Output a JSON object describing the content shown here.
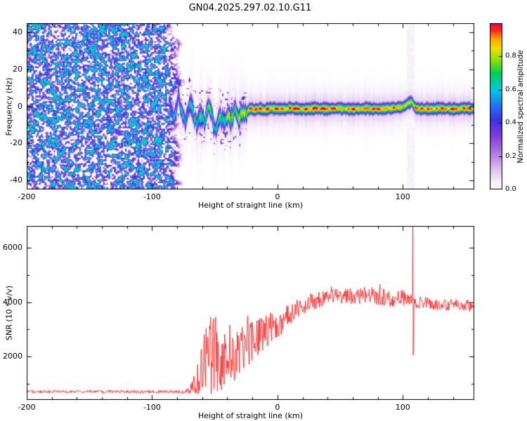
{
  "title": "GN04.2025.297.02.10.G11",
  "chart_data": [
    {
      "type": "heatmap",
      "title": "GN04.2025.297.02.10.G11",
      "xlabel": "Height of straight line (km)",
      "ylabel": "Frequency (Hz)",
      "xlim": [
        -200,
        157
      ],
      "ylim": [
        -45,
        45
      ],
      "xticks": [
        -200,
        -100,
        0,
        100
      ],
      "xtick_labels": [
        "-200",
        "-100",
        "0",
        "100"
      ],
      "x_minor_step": 20,
      "yticks": [
        -40,
        -20,
        0,
        20,
        40
      ],
      "ytick_labels": [
        "-40",
        "-20",
        "0",
        "20",
        "40"
      ],
      "y_minor_step": 10,
      "colorbar": {
        "label": "Normalized spectral amplitude",
        "lim": [
          0,
          1
        ],
        "ticks": [
          0,
          0.2,
          0.4,
          0.6,
          0.8
        ],
        "tick_labels": [
          "0.0",
          "0.2",
          "0.4",
          "0.6",
          "0.8"
        ]
      },
      "colormap_stops": [
        [
          0.0,
          "#ffffff"
        ],
        [
          0.05,
          "#f7f0fb"
        ],
        [
          0.12,
          "#ddc3ee"
        ],
        [
          0.22,
          "#b07ae0"
        ],
        [
          0.32,
          "#8040d8"
        ],
        [
          0.42,
          "#4030e0"
        ],
        [
          0.52,
          "#2080f0"
        ],
        [
          0.6,
          "#00c8e0"
        ],
        [
          0.7,
          "#00cc66"
        ],
        [
          0.78,
          "#8ce000"
        ],
        [
          0.85,
          "#f0e000"
        ],
        [
          0.91,
          "#ffa000"
        ],
        [
          0.96,
          "#ff2810"
        ],
        [
          1.0,
          "#e00060"
        ]
      ],
      "noise_region": {
        "x_start": -200,
        "x_edge": -78,
        "edge_raggedness_km": 14,
        "max_amplitude": 0.62
      },
      "chaos_region": [
        -86,
        -24
      ],
      "signal_track": [
        [
          -86,
          2,
          0.45
        ],
        [
          -82,
          -6,
          0.55
        ],
        [
          -79,
          5,
          0.5
        ],
        [
          -76,
          -3,
          0.65
        ],
        [
          -73,
          -9,
          0.55
        ],
        [
          -70,
          3,
          0.6
        ],
        [
          -67,
          -5,
          0.75
        ],
        [
          -64,
          -11,
          0.6
        ],
        [
          -61,
          -3,
          0.7
        ],
        [
          -58,
          -8,
          0.65
        ],
        [
          -55,
          1,
          0.75
        ],
        [
          -52,
          -7,
          0.7
        ],
        [
          -49,
          -12,
          0.6
        ],
        [
          -46,
          -5,
          0.75
        ],
        [
          -43,
          -10,
          0.65
        ],
        [
          -40,
          -4,
          0.8
        ],
        [
          -37,
          -8,
          0.75
        ],
        [
          -34,
          -2,
          0.8
        ],
        [
          -31,
          -6,
          0.85
        ],
        [
          -28,
          -2,
          0.85
        ],
        [
          -25,
          -4,
          0.9
        ],
        [
          -22,
          -1,
          0.95
        ],
        [
          -18,
          -2,
          0.9
        ],
        [
          -14,
          -1,
          1.0
        ],
        [
          -10,
          -2,
          0.95
        ],
        [
          -5,
          -1,
          1.0
        ],
        [
          0,
          -1.5,
          0.95
        ],
        [
          10,
          -1,
          1.0
        ],
        [
          20,
          -1.5,
          0.92
        ],
        [
          30,
          -1,
          0.97
        ],
        [
          40,
          -1.5,
          1.0
        ],
        [
          50,
          -1,
          0.94
        ],
        [
          60,
          -1.5,
          0.97
        ],
        [
          70,
          -1,
          0.92
        ],
        [
          80,
          -1.5,
          0.96
        ],
        [
          90,
          -1,
          0.93
        ],
        [
          100,
          -0.5,
          0.9
        ],
        [
          104,
          1.5,
          0.85
        ],
        [
          107,
          2.5,
          0.82
        ],
        [
          110,
          -1,
          0.92
        ],
        [
          120,
          -1.5,
          0.96
        ],
        [
          130,
          -1,
          0.93
        ],
        [
          140,
          -1.5,
          0.96
        ],
        [
          150,
          -1,
          0.94
        ],
        [
          157,
          -1.5,
          0.93
        ]
      ]
    },
    {
      "type": "line",
      "xlabel": "Height of straight line (km)",
      "ylabel": "SNR (10 * v/v)",
      "xlim": [
        -200,
        157
      ],
      "ylim": [
        400,
        6800
      ],
      "xticks": [
        -200,
        -100,
        0,
        100
      ],
      "xtick_labels": [
        "-200",
        "-100",
        "0",
        "100"
      ],
      "x_minor_step": 20,
      "yticks": [
        2000,
        4000,
        6000
      ],
      "ytick_labels": [
        "2000",
        "4000",
        "6000"
      ],
      "y_minor_step": 1000,
      "line_color": "#ff2222",
      "series": [
        {
          "name": "SNR",
          "envelope_points": [
            [
              -200,
              700,
              60
            ],
            [
              -90,
              700,
              60
            ],
            [
              -78,
              700,
              70
            ],
            [
              -72,
              730,
              110
            ],
            [
              -68,
              820,
              260
            ],
            [
              -64,
              1100,
              650
            ],
            [
              -60,
              1700,
              1200
            ],
            [
              -56,
              1900,
              1400
            ],
            [
              -52,
              2000,
              1500
            ],
            [
              -48,
              2100,
              1450
            ],
            [
              -44,
              2000,
              1300
            ],
            [
              -40,
              1800,
              1150
            ],
            [
              -36,
              1700,
              950
            ],
            [
              -32,
              2200,
              900
            ],
            [
              -28,
              2400,
              850
            ],
            [
              -24,
              2300,
              900
            ],
            [
              -20,
              2600,
              800
            ],
            [
              -15,
              2750,
              700
            ],
            [
              -10,
              2900,
              620
            ],
            [
              -5,
              3050,
              580
            ],
            [
              0,
              3150,
              520
            ],
            [
              5,
              3350,
              470
            ],
            [
              10,
              3550,
              420
            ],
            [
              15,
              3700,
              380
            ],
            [
              20,
              3850,
              350
            ],
            [
              30,
              4050,
              320
            ],
            [
              40,
              4150,
              300
            ],
            [
              50,
              4200,
              300
            ],
            [
              60,
              4200,
              300
            ],
            [
              70,
              4250,
              300
            ],
            [
              80,
              4200,
              340
            ],
            [
              90,
              4150,
              350
            ],
            [
              100,
              4150,
              300
            ],
            [
              104,
              4100,
              260
            ],
            [
              107,
              4150,
              220
            ],
            [
              110,
              3950,
              260
            ],
            [
              120,
              3950,
              230
            ],
            [
              130,
              3900,
              220
            ],
            [
              140,
              3880,
              230
            ],
            [
              150,
              3850,
              240
            ],
            [
              157,
              3820,
              250
            ]
          ],
          "spike": {
            "x": 108,
            "peak": 7400,
            "dip": 2050
          }
        }
      ]
    }
  ]
}
